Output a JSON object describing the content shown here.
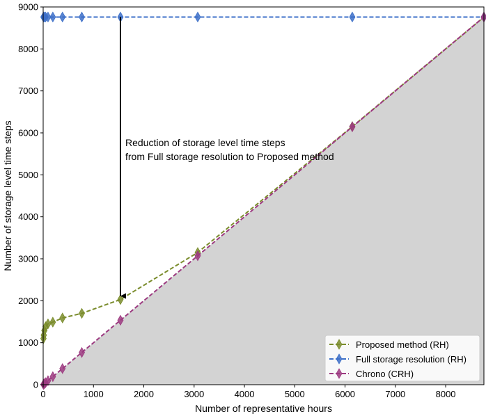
{
  "chart_data": {
    "type": "line",
    "title": "",
    "xlabel": "Number of representative hours",
    "ylabel": "Number of storage level time steps",
    "xlim": [
      0,
      8760
    ],
    "ylim": [
      0,
      9000
    ],
    "xticks": [
      0,
      1000,
      2000,
      3000,
      4000,
      5000,
      6000,
      7000,
      8000
    ],
    "yticks": [
      0,
      1000,
      2000,
      3000,
      4000,
      5000,
      6000,
      7000,
      8000,
      9000
    ],
    "grid": false,
    "legend_position": "bottom-right",
    "shaded_region": {
      "description": "area below y = x",
      "color": "#d3d3d3"
    },
    "series": [
      {
        "name": "Proposed method (RH)",
        "color": "#7a8c2c",
        "marker": "thin_diamond",
        "linestyle": "dashed",
        "x": [
          6,
          12,
          24,
          48,
          96,
          192,
          384,
          768,
          1536,
          3072,
          6144,
          8760
        ],
        "y": [
          1100,
          1180,
          1290,
          1380,
          1450,
          1490,
          1590,
          1700,
          2030,
          3150,
          6150,
          8760
        ]
      },
      {
        "name": "Full storage resolution (RH)",
        "color": "#3c6fc8",
        "marker": "thin_diamond",
        "linestyle": "dashed",
        "x": [
          6,
          12,
          24,
          48,
          96,
          192,
          384,
          768,
          1536,
          3072,
          6144,
          8760
        ],
        "y": [
          8760,
          8760,
          8760,
          8760,
          8760,
          8760,
          8760,
          8760,
          8760,
          8760,
          8760,
          8760
        ]
      },
      {
        "name": "Chrono (CRH)",
        "color": "#9c3a80",
        "marker": "thin_diamond",
        "linestyle": "dashed",
        "x": [
          6,
          12,
          24,
          48,
          96,
          192,
          384,
          768,
          1536,
          3072,
          6144,
          8760
        ],
        "y": [
          6,
          12,
          24,
          48,
          96,
          192,
          384,
          768,
          1536,
          3072,
          6144,
          8760
        ]
      }
    ],
    "annotation": {
      "lines": [
        "Reduction of storage level time steps",
        "from Full storage resolution to Proposed method"
      ],
      "arrow_x": 1536,
      "arrow_from_y": 8760,
      "arrow_to_y": 2030
    }
  }
}
